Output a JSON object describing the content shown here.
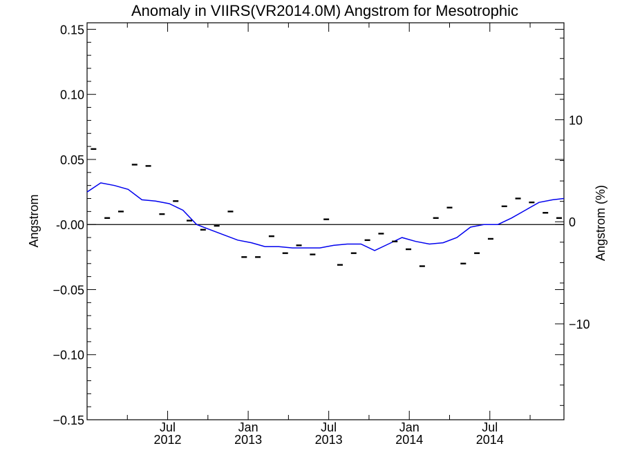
{
  "chart_data": {
    "type": "line",
    "title": "Anomaly in VIIRS(VR2014.0M) Angstrom for Mesotrophic",
    "ylabel": "Angstrom",
    "y2label": "Angstrom (%)",
    "ylim": [
      -0.15,
      0.155
    ],
    "y2lim": [
      -19.4,
      19.5
    ],
    "xlim": [
      2012.0,
      2014.96
    ],
    "yticks": [
      {
        "v": 0.15,
        "label": "0.15"
      },
      {
        "v": 0.1,
        "label": "0.10"
      },
      {
        "v": 0.05,
        "label": "0.05"
      },
      {
        "v": 0.0,
        "label": "-0.00"
      },
      {
        "v": -0.05,
        "label": "−0.05"
      },
      {
        "v": -0.1,
        "label": "−0.10"
      },
      {
        "v": -0.15,
        "label": "−0.15"
      }
    ],
    "y2ticks": [
      {
        "v": 10,
        "label": "10"
      },
      {
        "v": 0,
        "label": "0"
      },
      {
        "v": -10,
        "label": "−10"
      }
    ],
    "xticks": [
      {
        "v": 2012.5,
        "month": "Jul",
        "year": "2012"
      },
      {
        "v": 2013.0,
        "month": "Jan",
        "year": "2013"
      },
      {
        "v": 2013.5,
        "month": "Jul",
        "year": "2013"
      },
      {
        "v": 2014.0,
        "month": "Jan",
        "year": "2014"
      },
      {
        "v": 2014.5,
        "month": "Jul",
        "year": "2014"
      }
    ],
    "grid": false,
    "colors": {
      "smooth": "#0000ee",
      "monthly": "#000000",
      "zero": "#000000"
    },
    "series": [
      {
        "kind": "line",
        "x": [
          2012.0,
          2012.085,
          2012.17,
          2012.255,
          2012.34,
          2012.425,
          2012.51,
          2012.595,
          2012.68,
          2012.765,
          2012.85,
          2012.935,
          2013.02,
          2013.105,
          2013.19,
          2013.275,
          2013.36,
          2013.445,
          2013.53,
          2013.615,
          2013.7,
          2013.785,
          2013.87,
          2013.955,
          2014.04,
          2014.125,
          2014.21,
          2014.295,
          2014.38,
          2014.465,
          2014.55,
          2014.635,
          2014.72,
          2014.805,
          2014.89,
          2014.96
        ],
        "y": [
          0.025,
          0.032,
          0.03,
          0.027,
          0.019,
          0.018,
          0.016,
          0.011,
          0.0,
          -0.004,
          -0.008,
          -0.012,
          -0.014,
          -0.017,
          -0.017,
          -0.018,
          -0.018,
          -0.018,
          -0.016,
          -0.015,
          -0.015,
          -0.02,
          -0.015,
          -0.01,
          -0.013,
          -0.015,
          -0.014,
          -0.01,
          -0.002,
          0.0,
          0.0,
          0.005,
          0.011,
          0.017,
          0.019,
          0.02
        ]
      },
      {
        "kind": "markers",
        "x": [
          2012.04,
          2012.125,
          2012.21,
          2012.295,
          2012.38,
          2012.465,
          2012.55,
          2012.635,
          2012.72,
          2012.805,
          2012.89,
          2012.975,
          2013.06,
          2013.145,
          2013.23,
          2013.315,
          2013.4,
          2013.485,
          2013.57,
          2013.655,
          2013.74,
          2013.825,
          2013.91,
          2013.995,
          2014.08,
          2014.165,
          2014.25,
          2014.335,
          2014.42,
          2014.505,
          2014.59,
          2014.675,
          2014.76,
          2014.845,
          2014.93
        ],
        "y": [
          0.058,
          0.005,
          0.01,
          0.046,
          0.045,
          0.008,
          0.018,
          0.003,
          -0.004,
          -0.001,
          0.01,
          -0.025,
          -0.025,
          -0.009,
          -0.022,
          -0.016,
          -0.023,
          0.004,
          -0.031,
          -0.022,
          -0.012,
          -0.007,
          -0.013,
          -0.019,
          -0.032,
          0.005,
          0.013,
          -0.03,
          -0.022,
          -0.011,
          0.014,
          0.02,
          0.017,
          0.009,
          0.005
        ]
      }
    ]
  }
}
